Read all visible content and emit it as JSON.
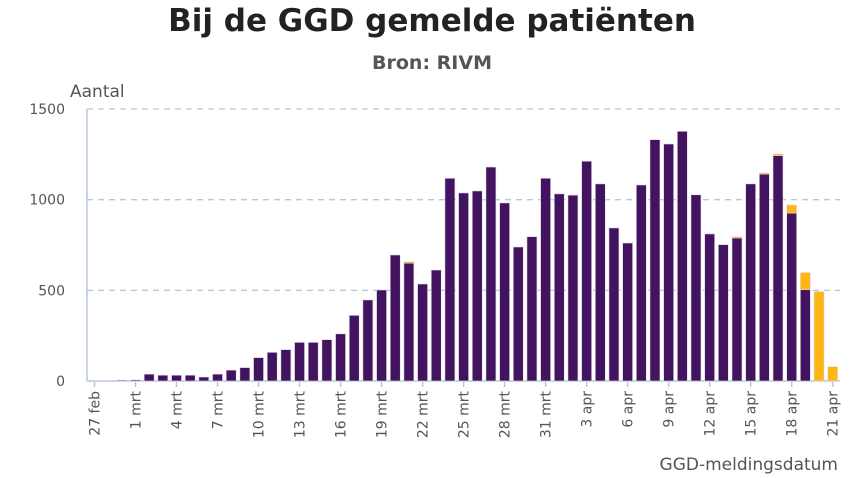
{
  "chart_data": {
    "type": "bar",
    "stacked": true,
    "title": "Bij de GGD gemelde patiënten",
    "subtitle": "Bron: RIVM",
    "ylabel": "Aantal",
    "xlabel": "GGD-meldingsdatum",
    "ylim": [
      0,
      1500
    ],
    "yticks": [
      0,
      500,
      1000,
      1500
    ],
    "grid": true,
    "colors": {
      "primary": "#42145f",
      "secondary": "#ffb612",
      "grid": "#b8c7dc"
    },
    "categories": [
      "27 feb",
      "28 feb",
      "29 feb",
      "1 mrt",
      "2 mrt",
      "3 mrt",
      "4 mrt",
      "5 mrt",
      "6 mrt",
      "7 mrt",
      "8 mrt",
      "9 mrt",
      "10 mrt",
      "11 mrt",
      "12 mrt",
      "13 mrt",
      "14 mrt",
      "15 mrt",
      "16 mrt",
      "17 mrt",
      "18 mrt",
      "19 mrt",
      "20 mrt",
      "21 mrt",
      "22 mrt",
      "23 mrt",
      "24 mrt",
      "25 mrt",
      "26 mrt",
      "27 mrt",
      "28 mrt",
      "29 mrt",
      "30 mrt",
      "31 mrt",
      "1 apr",
      "2 apr",
      "3 apr",
      "4 apr",
      "5 apr",
      "6 apr",
      "7 apr",
      "8 apr",
      "9 apr",
      "10 apr",
      "11 apr",
      "12 apr",
      "13 apr",
      "14 apr",
      "15 apr",
      "16 apr",
      "17 apr",
      "18 apr",
      "19 apr",
      "20 apr",
      "21 apr"
    ],
    "tick_labels": [
      "27 feb",
      "1 mrt",
      "4 mrt",
      "7 mrt",
      "10 mrt",
      "13 mrt",
      "16 mrt",
      "19 mrt",
      "22 mrt",
      "25 mrt",
      "28 mrt",
      "31 mrt",
      "3 apr",
      "6 apr",
      "9 apr",
      "12 apr",
      "15 apr",
      "18 apr",
      "21 apr"
    ],
    "series": [
      {
        "values": [
          0,
          0,
          5,
          6,
          38,
          32,
          32,
          32,
          22,
          38,
          60,
          74,
          129,
          158,
          173,
          213,
          213,
          228,
          260,
          362,
          447,
          502,
          695,
          650,
          535,
          612,
          1118,
          1037,
          1048,
          1180,
          982,
          739,
          796,
          1118,
          1032,
          1025,
          1212,
          1087,
          844,
          761,
          1081,
          1331,
          1307,
          1377,
          1027,
          811,
          752,
          789,
          1087,
          1141,
          1243,
          926,
          504,
          0,
          0
        ]
      },
      {
        "values": [
          0,
          0,
          0,
          0,
          0,
          0,
          0,
          0,
          0,
          0,
          0,
          0,
          0,
          0,
          0,
          0,
          0,
          0,
          0,
          0,
          0,
          0,
          0,
          8,
          0,
          0,
          0,
          0,
          0,
          0,
          0,
          0,
          0,
          0,
          0,
          0,
          0,
          0,
          0,
          0,
          0,
          0,
          0,
          0,
          0,
          0,
          0,
          7,
          0,
          7,
          9,
          45,
          94,
          493,
          79
        ]
      }
    ]
  }
}
